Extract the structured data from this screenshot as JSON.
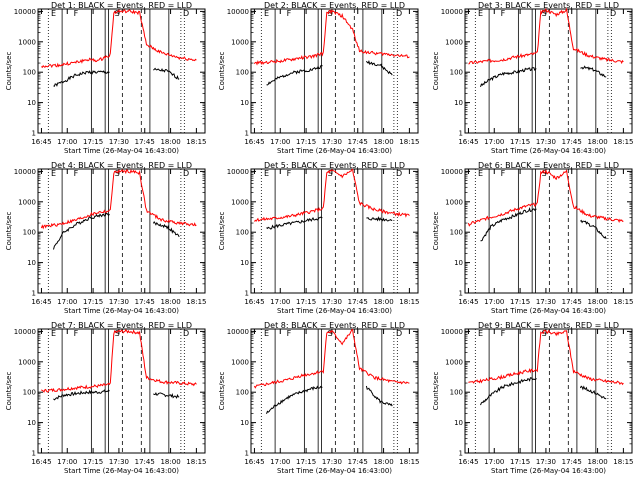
{
  "figure": {
    "xlabel": "Start Time (26-May-04 16:43:00)",
    "ylabel": "Counts/sec",
    "x_ticks": [
      "16:45",
      "17:00",
      "17:15",
      "17:30",
      "17:45",
      "18:00",
      "18:15"
    ],
    "y_ticks": [
      "1",
      "10",
      "100",
      "1000",
      "10000"
    ],
    "event_color": "#000000",
    "lld_color": "#ff0000"
  },
  "chart_data": [
    {
      "type": "line",
      "title": "Det 1: BLACK = Events, RED = LLD",
      "yscale": "log",
      "ylim": [
        1,
        12000
      ],
      "xlim": [
        "16:43",
        "18:20"
      ],
      "series": [
        {
          "name": "Events",
          "x": [
            "16:52",
            "16:58",
            "17:05",
            "17:12",
            "17:18",
            "17:25",
            "17:30",
            "17:38",
            "17:44",
            "17:50",
            "17:58",
            "18:05"
          ],
          "values": [
            35,
            50,
            80,
            100,
            100,
            100,
            0,
            0,
            0,
            120,
            110,
            60
          ]
        },
        {
          "name": "LLD",
          "x": [
            "16:45",
            "16:55",
            "17:05",
            "17:12",
            "17:18",
            "17:25",
            "17:27",
            "17:30",
            "17:36",
            "17:42",
            "17:46",
            "17:55",
            "18:05",
            "18:15"
          ],
          "values": [
            160,
            170,
            210,
            260,
            240,
            380,
            9000,
            10000,
            10000,
            9000,
            800,
            430,
            300,
            250
          ]
        }
      ],
      "markers": [
        "E",
        "F",
        "S",
        "D"
      ]
    },
    {
      "type": "line",
      "title": "Det 2: BLACK = Events, RED = LLD",
      "yscale": "log",
      "ylim": [
        1,
        12000
      ],
      "xlim": [
        "16:43",
        "18:20"
      ],
      "series": [
        {
          "name": "Events",
          "x": [
            "16:52",
            "16:58",
            "17:05",
            "17:12",
            "17:18",
            "17:25",
            "17:30",
            "17:38",
            "17:44",
            "17:50",
            "17:58",
            "18:05"
          ],
          "values": [
            40,
            60,
            90,
            110,
            120,
            160,
            0,
            0,
            0,
            220,
            170,
            80
          ]
        },
        {
          "name": "LLD",
          "x": [
            "16:45",
            "16:55",
            "17:05",
            "17:12",
            "17:18",
            "17:25",
            "17:27",
            "17:30",
            "17:36",
            "17:42",
            "17:46",
            "17:55",
            "18:05",
            "18:15"
          ],
          "values": [
            200,
            220,
            250,
            300,
            320,
            420,
            9000,
            10000,
            7000,
            2500,
            500,
            420,
            380,
            320
          ]
        }
      ],
      "markers": [
        "E",
        "F",
        "S",
        "D"
      ]
    },
    {
      "type": "line",
      "title": "Det 3: BLACK = Events, RED = LLD",
      "yscale": "log",
      "ylim": [
        1,
        12000
      ],
      "xlim": [
        "16:43",
        "18:20"
      ],
      "series": [
        {
          "name": "Events",
          "x": [
            "16:52",
            "16:58",
            "17:05",
            "17:12",
            "17:18",
            "17:25",
            "17:30",
            "17:38",
            "17:44",
            "17:50",
            "17:58",
            "18:05"
          ],
          "values": [
            35,
            60,
            90,
            100,
            120,
            130,
            0,
            0,
            0,
            150,
            120,
            70
          ]
        },
        {
          "name": "LLD",
          "x": [
            "16:45",
            "16:55",
            "17:05",
            "17:12",
            "17:18",
            "17:25",
            "17:27",
            "17:30",
            "17:36",
            "17:42",
            "17:46",
            "17:55",
            "18:05",
            "18:15"
          ],
          "values": [
            200,
            230,
            260,
            320,
            360,
            420,
            9000,
            11000,
            8000,
            11000,
            600,
            350,
            260,
            220
          ]
        }
      ],
      "markers": [
        "E",
        "F",
        "S",
        "D"
      ]
    },
    {
      "type": "line",
      "title": "Det 4: BLACK = Events, RED = LLD",
      "yscale": "log",
      "ylim": [
        1,
        12000
      ],
      "xlim": [
        "16:43",
        "18:20"
      ],
      "series": [
        {
          "name": "Events",
          "x": [
            "16:52",
            "16:58",
            "17:05",
            "17:12",
            "17:18",
            "17:25",
            "17:30",
            "17:38",
            "17:44",
            "17:50",
            "17:58",
            "18:05"
          ],
          "values": [
            30,
            100,
            180,
            280,
            350,
            400,
            0,
            0,
            0,
            200,
            150,
            70
          ]
        },
        {
          "name": "LLD",
          "x": [
            "16:45",
            "16:55",
            "17:05",
            "17:12",
            "17:18",
            "17:25",
            "17:27",
            "17:30",
            "17:36",
            "17:42",
            "17:46",
            "17:55",
            "18:05",
            "18:15"
          ],
          "values": [
            150,
            180,
            250,
            350,
            450,
            500,
            9000,
            10000,
            10000,
            9000,
            500,
            250,
            200,
            170
          ]
        }
      ],
      "markers": [
        "E",
        "F",
        "S",
        "D"
      ]
    },
    {
      "type": "line",
      "title": "Det 5: BLACK = Events, RED = LLD",
      "yscale": "log",
      "ylim": [
        1,
        12000
      ],
      "xlim": [
        "16:43",
        "18:20"
      ],
      "series": [
        {
          "name": "Events",
          "x": [
            "16:52",
            "16:58",
            "17:05",
            "17:12",
            "17:18",
            "17:25",
            "17:30",
            "17:38",
            "17:44",
            "17:50",
            "17:58",
            "18:05"
          ],
          "values": [
            130,
            160,
            190,
            220,
            260,
            300,
            0,
            0,
            0,
            280,
            270,
            250
          ]
        },
        {
          "name": "LLD",
          "x": [
            "16:45",
            "16:55",
            "17:05",
            "17:12",
            "17:18",
            "17:25",
            "17:27",
            "17:30",
            "17:36",
            "17:42",
            "17:46",
            "17:55",
            "18:05",
            "18:15"
          ],
          "values": [
            250,
            280,
            330,
            400,
            480,
            600,
            9000,
            10500,
            7000,
            11000,
            900,
            550,
            420,
            350
          ]
        }
      ],
      "markers": [
        "E",
        "F",
        "S",
        "D"
      ]
    },
    {
      "type": "line",
      "title": "Det 6: BLACK = Events, RED = LLD",
      "yscale": "log",
      "ylim": [
        1,
        12000
      ],
      "xlim": [
        "16:43",
        "18:20"
      ],
      "series": [
        {
          "name": "Events",
          "x": [
            "16:52",
            "16:58",
            "17:05",
            "17:12",
            "17:18",
            "17:25",
            "17:30",
            "17:38",
            "17:44",
            "17:50",
            "17:58",
            "18:05"
          ],
          "values": [
            50,
            150,
            260,
            350,
            500,
            600,
            0,
            0,
            0,
            250,
            150,
            60
          ]
        },
        {
          "name": "LLD",
          "x": [
            "16:45",
            "16:55",
            "17:05",
            "17:12",
            "17:18",
            "17:25",
            "17:27",
            "17:30",
            "17:36",
            "17:42",
            "17:46",
            "17:55",
            "18:05",
            "18:15"
          ],
          "values": [
            180,
            280,
            400,
            550,
            700,
            850,
            9000,
            10000,
            6000,
            10000,
            700,
            350,
            280,
            230
          ]
        }
      ],
      "markers": [
        "E",
        "F",
        "S",
        "D"
      ]
    },
    {
      "type": "line",
      "title": "Det 7: BLACK = Events, RED = LLD",
      "yscale": "log",
      "ylim": [
        1,
        12000
      ],
      "xlim": [
        "16:43",
        "18:20"
      ],
      "series": [
        {
          "name": "Events",
          "x": [
            "16:52",
            "16:58",
            "17:05",
            "17:12",
            "17:18",
            "17:25",
            "17:30",
            "17:38",
            "17:44",
            "17:50",
            "17:58",
            "18:05"
          ],
          "values": [
            60,
            80,
            90,
            100,
            100,
            110,
            0,
            0,
            0,
            90,
            80,
            70
          ]
        },
        {
          "name": "LLD",
          "x": [
            "16:45",
            "16:55",
            "17:05",
            "17:12",
            "17:18",
            "17:25",
            "17:27",
            "17:30",
            "17:36",
            "17:42",
            "17:46",
            "17:55",
            "18:05",
            "18:15"
          ],
          "values": [
            110,
            120,
            140,
            150,
            160,
            180,
            9000,
            10000,
            10000,
            9000,
            300,
            220,
            200,
            180
          ]
        }
      ],
      "markers": [
        "E",
        "F",
        "S",
        "D"
      ]
    },
    {
      "type": "line",
      "title": "Det 8: BLACK = Events, RED = LLD",
      "yscale": "log",
      "ylim": [
        1,
        12000
      ],
      "xlim": [
        "16:43",
        "18:20"
      ],
      "series": [
        {
          "name": "Events",
          "x": [
            "16:52",
            "16:58",
            "17:05",
            "17:12",
            "17:18",
            "17:25",
            "17:30",
            "17:38",
            "17:44",
            "17:50",
            "17:58",
            "18:05"
          ],
          "values": [
            20,
            40,
            70,
            100,
            130,
            150,
            0,
            0,
            0,
            150,
            50,
            35
          ]
        },
        {
          "name": "LLD",
          "x": [
            "16:45",
            "16:55",
            "17:05",
            "17:12",
            "17:18",
            "17:25",
            "17:27",
            "17:30",
            "17:36",
            "17:42",
            "17:46",
            "17:55",
            "18:05",
            "18:15"
          ],
          "values": [
            150,
            200,
            260,
            350,
            400,
            500,
            9000,
            10000,
            4000,
            11000,
            600,
            300,
            220,
            200
          ]
        }
      ],
      "markers": [
        "E",
        "F",
        "S",
        "D"
      ]
    },
    {
      "type": "line",
      "title": "Det 9: BLACK = Events, RED = LLD",
      "yscale": "log",
      "ylim": [
        1,
        12000
      ],
      "xlim": [
        "16:43",
        "18:20"
      ],
      "series": [
        {
          "name": "Events",
          "x": [
            "16:52",
            "16:58",
            "17:05",
            "17:12",
            "17:18",
            "17:25",
            "17:30",
            "17:38",
            "17:44",
            "17:50",
            "17:58",
            "18:05"
          ],
          "values": [
            40,
            80,
            150,
            200,
            250,
            300,
            0,
            0,
            0,
            150,
            100,
            60
          ]
        },
        {
          "name": "LLD",
          "x": [
            "16:45",
            "16:55",
            "17:05",
            "17:12",
            "17:18",
            "17:25",
            "17:27",
            "17:30",
            "17:36",
            "17:42",
            "17:46",
            "17:55",
            "18:05",
            "18:15"
          ],
          "values": [
            200,
            250,
            320,
            400,
            480,
            550,
            9000,
            10000,
            8000,
            10000,
            500,
            280,
            230,
            200
          ]
        }
      ],
      "markers": [
        "E",
        "F",
        "S",
        "D"
      ]
    }
  ]
}
